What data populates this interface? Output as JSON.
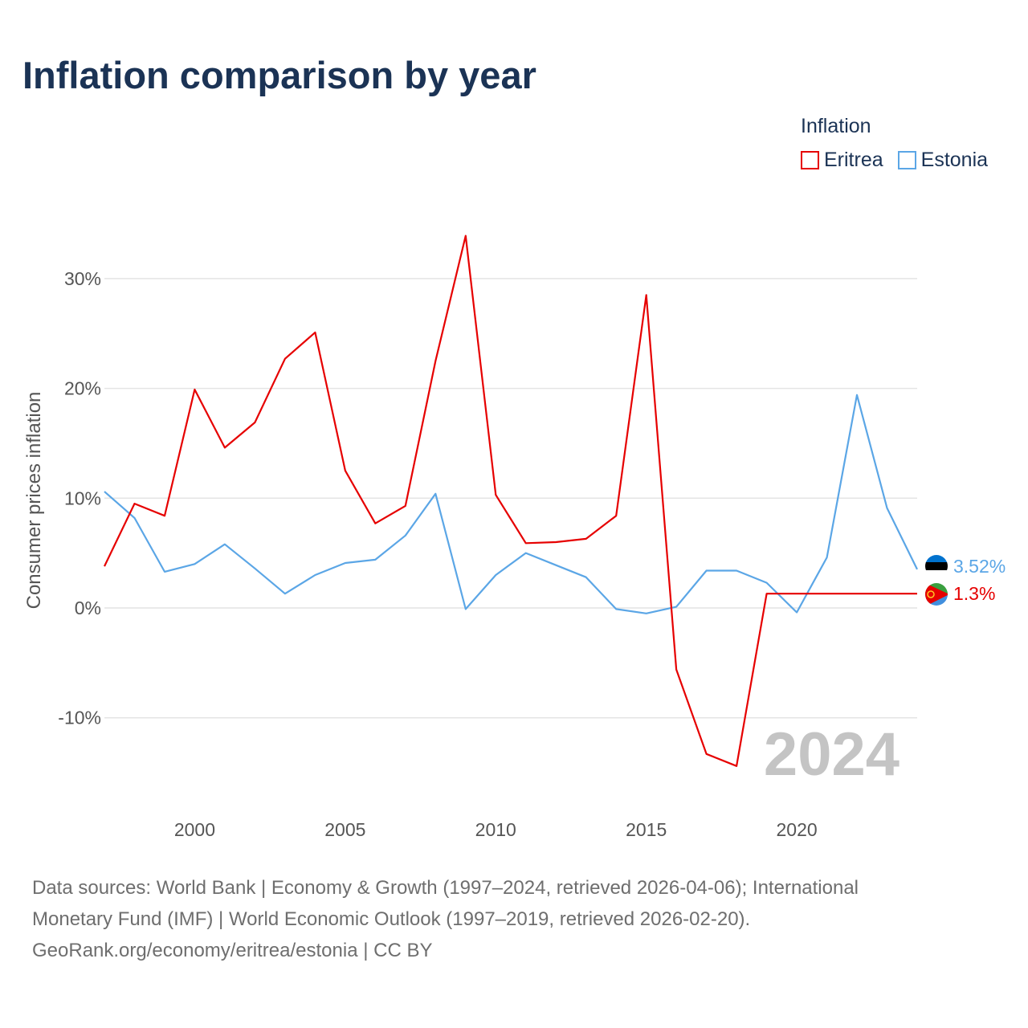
{
  "title": "Inflation comparison by year",
  "legend": {
    "title": "Inflation",
    "items": [
      {
        "name": "Eritrea",
        "color": "#e60000"
      },
      {
        "name": "Estonia",
        "color": "#5ba6e6"
      }
    ]
  },
  "watermark_year": "2024",
  "footer": {
    "line1": "Data sources: World Bank | Economy & Growth (1997–2024, retrieved 2026-04-06); International",
    "line2": "Monetary Fund (IMF) | World Economic Outlook (1997–2019, retrieved 2026-02-20).",
    "line3": "GeoRank.org/economy/eritrea/estonia | CC BY"
  },
  "chart_data": {
    "type": "line",
    "title": "Inflation comparison by year",
    "xlabel": "",
    "ylabel": "Consumer prices inflation",
    "xlim": [
      1997,
      2024
    ],
    "ylim": [
      -17,
      36
    ],
    "x_ticks": [
      2000,
      2005,
      2010,
      2015,
      2020
    ],
    "y_ticks": [
      -10,
      0,
      10,
      20,
      30
    ],
    "y_tick_labels": [
      "-10%",
      "0%",
      "10%",
      "20%",
      "30%"
    ],
    "grid": true,
    "legend_position": "top-right",
    "series": [
      {
        "name": "Eritrea",
        "color": "#e60000",
        "x": [
          1997,
          1998,
          1999,
          2000,
          2001,
          2002,
          2003,
          2004,
          2005,
          2006,
          2007,
          2008,
          2009,
          2010,
          2011,
          2012,
          2013,
          2014,
          2015,
          2016,
          2017,
          2018,
          2019,
          2020,
          2021,
          2022,
          2023,
          2024
        ],
        "values": [
          3.8,
          9.5,
          8.4,
          19.9,
          14.6,
          16.9,
          22.7,
          25.1,
          12.5,
          7.7,
          9.3,
          22.5,
          33.9,
          10.3,
          5.9,
          6.0,
          6.3,
          8.4,
          28.5,
          -5.6,
          -13.3,
          -14.4,
          1.3,
          1.3,
          1.3,
          1.3,
          1.3,
          1.3
        ],
        "end_label": "1.3%"
      },
      {
        "name": "Estonia",
        "color": "#5ba6e6",
        "x": [
          1997,
          1998,
          1999,
          2000,
          2001,
          2002,
          2003,
          2004,
          2005,
          2006,
          2007,
          2008,
          2009,
          2010,
          2011,
          2012,
          2013,
          2014,
          2015,
          2016,
          2017,
          2018,
          2019,
          2020,
          2021,
          2022,
          2023,
          2024
        ],
        "values": [
          10.6,
          8.2,
          3.3,
          4.0,
          5.8,
          3.6,
          1.3,
          3.0,
          4.1,
          4.4,
          6.6,
          10.4,
          -0.1,
          3.0,
          5.0,
          3.9,
          2.8,
          -0.1,
          -0.5,
          0.1,
          3.4,
          3.4,
          2.3,
          -0.4,
          4.6,
          19.4,
          9.1,
          3.52
        ],
        "end_label": "3.52%"
      }
    ]
  }
}
